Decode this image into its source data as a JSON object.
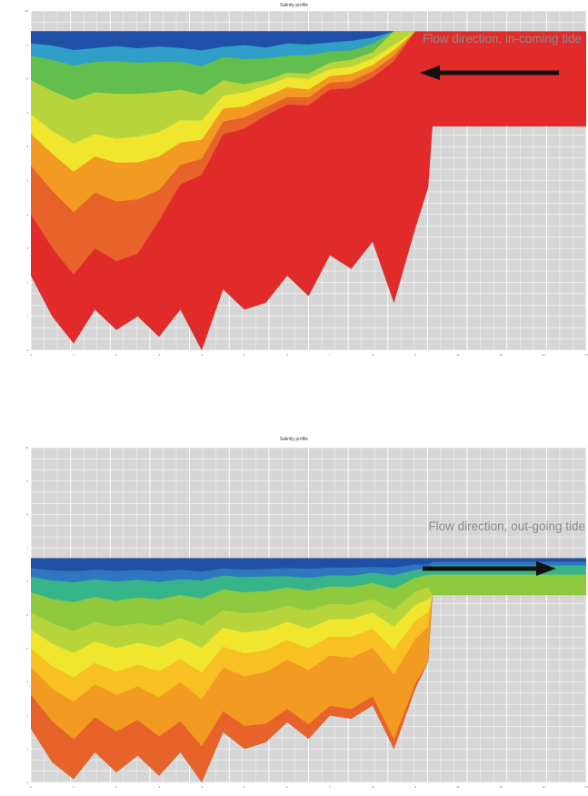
{
  "colors": {
    "background": "#d6d6d6",
    "grid": "#ffffff",
    "arrow": "#111111",
    "bands": [
      "#1f4fa6",
      "#2f76c0",
      "#2f9ec9",
      "#37b58a",
      "#62bf4d",
      "#8fca3e",
      "#b7d53a",
      "#f0e62e",
      "#f8c023",
      "#f29a22",
      "#e8632a",
      "#e12b2b"
    ]
  },
  "chart_data": [
    {
      "type": "area",
      "title": "Salinity profile",
      "annotation": "Flow direction, in-coming tide",
      "arrow_direction": "left",
      "xlim": [
        0,
        13
      ],
      "ylim": [
        0,
        10
      ],
      "grid": true,
      "legend": "none",
      "x_ticks": [
        "0",
        "1",
        "2",
        "3",
        "4",
        "5",
        "6",
        "7",
        "8",
        "9",
        "10",
        "11",
        "12",
        "13"
      ],
      "y_ticks": [
        "10",
        "9",
        "8",
        "7",
        "6",
        "5",
        "4",
        "3",
        "2",
        "1",
        "0"
      ],
      "surface_level": 9.4,
      "profile": {
        "x": [
          0,
          0.5,
          1,
          1.5,
          2,
          2.5,
          3,
          3.5,
          4,
          4.5,
          5,
          5.5,
          6,
          6.5,
          7,
          7.5,
          8,
          8.5,
          9,
          9.3,
          9.4,
          13
        ],
        "bottom": [
          2.2,
          1.0,
          0.2,
          1.2,
          0.6,
          1.0,
          0.4,
          1.2,
          0.0,
          1.8,
          1.2,
          1.4,
          2.2,
          1.6,
          2.8,
          2.4,
          3.2,
          1.4,
          3.6,
          4.8,
          6.6,
          6.6
        ]
      },
      "bands": [
        {
          "color_index": 0,
          "depth_fraction": [
            0.05,
            0.05,
            0.06,
            0.06,
            0.05,
            0.06,
            0.05,
            0.06,
            0.06,
            0.06,
            0.05,
            0.06,
            0.05,
            0.05,
            0.05,
            0.04,
            0.03,
            0.0,
            0.0,
            0.0,
            0.0,
            0.0
          ]
        },
        {
          "color_index": 2,
          "depth_fraction": [
            0.1,
            0.1,
            0.11,
            0.11,
            0.1,
            0.11,
            0.1,
            0.11,
            0.11,
            0.1,
            0.1,
            0.1,
            0.1,
            0.09,
            0.09,
            0.08,
            0.06,
            0.0,
            0.0,
            0.0,
            0.0,
            0.0
          ]
        },
        {
          "color_index": 4,
          "depth_fraction": [
            0.2,
            0.21,
            0.22,
            0.22,
            0.21,
            0.22,
            0.2,
            0.21,
            0.2,
            0.19,
            0.19,
            0.18,
            0.17,
            0.16,
            0.14,
            0.12,
            0.1,
            0.0,
            0.0,
            0.0,
            0.0,
            0.0
          ]
        },
        {
          "color_index": 6,
          "depth_fraction": [
            0.34,
            0.35,
            0.36,
            0.37,
            0.36,
            0.37,
            0.33,
            0.32,
            0.28,
            0.25,
            0.22,
            0.2,
            0.19,
            0.18,
            0.17,
            0.15,
            0.13,
            0.05,
            0.0,
            0.0,
            0.0,
            0.0
          ]
        },
        {
          "color_index": 7,
          "depth_fraction": [
            0.42,
            0.43,
            0.45,
            0.45,
            0.44,
            0.46,
            0.41,
            0.4,
            0.34,
            0.3,
            0.27,
            0.24,
            0.23,
            0.22,
            0.2,
            0.18,
            0.16,
            0.07,
            0.0,
            0.0,
            0.0,
            0.0
          ]
        },
        {
          "color_index": 9,
          "depth_fraction": [
            0.55,
            0.56,
            0.58,
            0.58,
            0.57,
            0.59,
            0.52,
            0.48,
            0.4,
            0.35,
            0.31,
            0.28,
            0.27,
            0.25,
            0.23,
            0.21,
            0.19,
            0.09,
            0.0,
            0.0,
            0.0,
            0.0
          ]
        },
        {
          "color_index": 10,
          "depth_fraction": [
            0.75,
            0.76,
            0.78,
            0.78,
            0.77,
            0.78,
            0.62,
            0.55,
            0.45,
            0.4,
            0.35,
            0.31,
            0.3,
            0.28,
            0.26,
            0.24,
            0.22,
            0.11,
            0.0,
            0.0,
            0.0,
            0.0
          ]
        },
        {
          "color_index": 11,
          "depth_fraction": [
            1,
            1,
            1,
            1,
            1,
            1,
            1,
            1,
            1,
            1,
            1,
            1,
            1,
            1,
            1,
            1,
            1,
            1,
            1,
            1,
            1,
            1
          ]
        }
      ]
    },
    {
      "type": "area",
      "title": "Salinity profile",
      "annotation": "Flow direction, out-going tide",
      "arrow_direction": "right",
      "xlim": [
        0,
        13
      ],
      "ylim": [
        0,
        10
      ],
      "grid": true,
      "legend": "none",
      "x_ticks": [
        "0",
        "1",
        "2",
        "3",
        "4",
        "5",
        "6",
        "7",
        "8",
        "9",
        "10",
        "11",
        "12",
        "13"
      ],
      "y_ticks": [
        "10",
        "9",
        "8",
        "7",
        "6",
        "5",
        "4",
        "3",
        "2",
        "1",
        "0"
      ],
      "surface_level": 6.7,
      "profile": {
        "x": [
          0,
          0.5,
          1,
          1.5,
          2,
          2.5,
          3,
          3.5,
          4,
          4.5,
          5,
          5.5,
          6,
          6.5,
          7,
          7.5,
          8,
          8.5,
          9,
          9.3,
          9.4,
          13
        ],
        "bottom": [
          1.6,
          0.6,
          0.1,
          0.9,
          0.3,
          0.8,
          0.2,
          0.9,
          0.0,
          1.5,
          1.0,
          1.2,
          1.8,
          1.3,
          2.0,
          1.9,
          2.3,
          1.0,
          2.8,
          3.6,
          5.6,
          5.6
        ]
      },
      "bands": [
        {
          "color_index": 0,
          "depth_fraction": [
            0.06,
            0.06,
            0.06,
            0.06,
            0.06,
            0.06,
            0.06,
            0.06,
            0.06,
            0.06,
            0.06,
            0.06,
            0.06,
            0.06,
            0.06,
            0.06,
            0.06,
            0.05,
            0.05,
            0.06,
            0.1,
            0.1
          ]
        },
        {
          "color_index": 1,
          "depth_fraction": [
            0.11,
            0.11,
            0.11,
            0.11,
            0.11,
            0.11,
            0.11,
            0.11,
            0.1,
            0.1,
            0.1,
            0.1,
            0.11,
            0.11,
            0.11,
            0.11,
            0.1,
            0.09,
            0.09,
            0.1,
            0.2,
            0.2
          ]
        },
        {
          "color_index": 3,
          "depth_fraction": [
            0.2,
            0.2,
            0.2,
            0.2,
            0.2,
            0.2,
            0.19,
            0.19,
            0.18,
            0.18,
            0.18,
            0.18,
            0.18,
            0.18,
            0.18,
            0.18,
            0.17,
            0.16,
            0.15,
            0.16,
            0.45,
            0.45
          ]
        },
        {
          "color_index": 5,
          "depth_fraction": [
            0.32,
            0.32,
            0.33,
            0.33,
            0.32,
            0.33,
            0.31,
            0.31,
            0.3,
            0.3,
            0.29,
            0.29,
            0.29,
            0.29,
            0.29,
            0.29,
            0.28,
            0.27,
            0.26,
            0.28,
            1,
            1
          ]
        },
        {
          "color_index": 6,
          "depth_fraction": [
            0.42,
            0.42,
            0.43,
            0.43,
            0.42,
            0.43,
            0.41,
            0.41,
            0.4,
            0.4,
            0.39,
            0.39,
            0.39,
            0.39,
            0.39,
            0.38,
            0.37,
            0.36,
            0.36,
            0.4,
            1,
            1
          ]
        },
        {
          "color_index": 7,
          "depth_fraction": [
            0.53,
            0.53,
            0.54,
            0.54,
            0.53,
            0.54,
            0.52,
            0.52,
            0.51,
            0.51,
            0.5,
            0.5,
            0.5,
            0.5,
            0.5,
            0.49,
            0.48,
            0.48,
            0.48,
            0.52,
            1,
            1
          ]
        },
        {
          "color_index": 8,
          "depth_fraction": [
            0.64,
            0.64,
            0.65,
            0.65,
            0.64,
            0.65,
            0.64,
            0.64,
            0.63,
            0.63,
            0.62,
            0.62,
            0.62,
            0.62,
            0.62,
            0.62,
            0.61,
            0.61,
            0.62,
            0.66,
            1,
            1
          ]
        },
        {
          "color_index": 9,
          "depth_fraction": [
            0.8,
            0.8,
            0.82,
            0.82,
            0.81,
            0.82,
            0.82,
            0.84,
            0.84,
            0.88,
            0.88,
            0.9,
            0.92,
            0.92,
            0.94,
            0.94,
            0.94,
            0.95,
            0.96,
            1,
            1,
            1
          ]
        },
        {
          "color_index": 10,
          "depth_fraction": [
            1,
            1,
            1,
            1,
            1,
            1,
            1,
            1,
            1,
            1,
            1,
            1,
            1,
            1,
            1,
            1,
            1,
            1,
            1,
            1,
            1,
            1
          ]
        }
      ]
    }
  ]
}
